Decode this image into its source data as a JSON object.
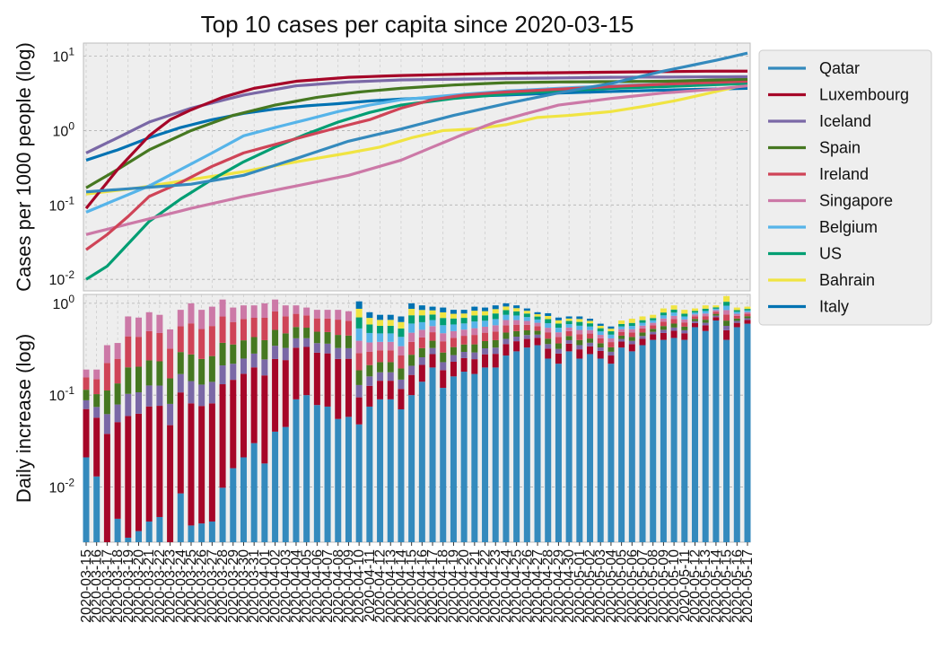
{
  "chart_data": [
    {
      "type": "line",
      "title": "Top 10 cases per capita since 2020-03-15",
      "ylabel": "Cases per 1000 people (log)",
      "yscale": "log",
      "ylim": [
        0.007,
        15
      ],
      "yticks": [
        0.01,
        0.1,
        1,
        10
      ],
      "ytick_labels": [
        {
          "base": "10",
          "exp": "-2"
        },
        {
          "base": "10",
          "exp": "-1"
        },
        {
          "base": "10",
          "exp": "0"
        },
        {
          "base": "10",
          "exp": "1"
        }
      ],
      "grid": true,
      "legend_position": "right",
      "dates": [
        "2020-03-15",
        "2020-03-16",
        "2020-03-17",
        "2020-03-18",
        "2020-03-19",
        "2020-03-20",
        "2020-03-21",
        "2020-03-22",
        "2020-03-23",
        "2020-03-24",
        "2020-03-25",
        "2020-03-26",
        "2020-03-27",
        "2020-03-28",
        "2020-03-29",
        "2020-03-30",
        "2020-03-31",
        "2020-04-01",
        "2020-04-02",
        "2020-04-03",
        "2020-04-04",
        "2020-04-05",
        "2020-04-06",
        "2020-04-07",
        "2020-04-08",
        "2020-04-09",
        "2020-04-10",
        "2020-04-11",
        "2020-04-12",
        "2020-04-13",
        "2020-04-14",
        "2020-04-15",
        "2020-04-16",
        "2020-04-17",
        "2020-04-18",
        "2020-04-19",
        "2020-04-20",
        "2020-04-21",
        "2020-04-22",
        "2020-04-23",
        "2020-04-24",
        "2020-04-25",
        "2020-04-26",
        "2020-04-27",
        "2020-04-28",
        "2020-04-29",
        "2020-04-30",
        "2020-05-01",
        "2020-05-02",
        "2020-05-03",
        "2020-05-04",
        "2020-05-05",
        "2020-05-06",
        "2020-05-07",
        "2020-05-08",
        "2020-05-09",
        "2020-05-10",
        "2020-05-11",
        "2020-05-12",
        "2020-05-13",
        "2020-05-14",
        "2020-05-15",
        "2020-05-16",
        "2020-05-17"
      ],
      "series": [
        {
          "name": "Qatar",
          "color": "#348abd",
          "key": [
            [
              0,
              0.15
            ],
            [
              10,
              0.19
            ],
            [
              15,
              0.25
            ],
            [
              20,
              0.42
            ],
            [
              25,
              0.72
            ],
            [
              30,
              1.05
            ],
            [
              35,
              1.6
            ],
            [
              40,
              2.3
            ],
            [
              45,
              3.2
            ],
            [
              50,
              4.3
            ],
            [
              55,
              6.3
            ],
            [
              60,
              8.8
            ],
            [
              63,
              11
            ]
          ]
        },
        {
          "name": "Luxembourg",
          "color": "#a60628",
          "key": [
            [
              0,
              0.09
            ],
            [
              3,
              0.3
            ],
            [
              6,
              0.85
            ],
            [
              8,
              1.4
            ],
            [
              10,
              1.9
            ],
            [
              13,
              2.8
            ],
            [
              16,
              3.7
            ],
            [
              20,
              4.6
            ],
            [
              25,
              5.2
            ],
            [
              30,
              5.5
            ],
            [
              35,
              5.7
            ],
            [
              40,
              5.9
            ],
            [
              45,
              6.0
            ],
            [
              50,
              6.1
            ],
            [
              55,
              6.2
            ],
            [
              60,
              6.3
            ],
            [
              63,
              6.3
            ]
          ]
        },
        {
          "name": "Iceland",
          "color": "#7a68a6",
          "key": [
            [
              0,
              0.5
            ],
            [
              3,
              0.8
            ],
            [
              6,
              1.3
            ],
            [
              10,
              2.0
            ],
            [
              15,
              3.0
            ],
            [
              20,
              4.0
            ],
            [
              25,
              4.5
            ],
            [
              30,
              4.8
            ],
            [
              40,
              5.0
            ],
            [
              50,
              5.2
            ],
            [
              63,
              5.3
            ]
          ]
        },
        {
          "name": "Spain",
          "color": "#467821",
          "key": [
            [
              0,
              0.17
            ],
            [
              3,
              0.3
            ],
            [
              6,
              0.55
            ],
            [
              10,
              1.0
            ],
            [
              14,
              1.6
            ],
            [
              18,
              2.2
            ],
            [
              22,
              2.8
            ],
            [
              26,
              3.3
            ],
            [
              30,
              3.7
            ],
            [
              35,
              4.1
            ],
            [
              40,
              4.4
            ],
            [
              45,
              4.5
            ],
            [
              55,
              4.6
            ],
            [
              63,
              4.9
            ]
          ]
        },
        {
          "name": "Ireland",
          "color": "#cf4457",
          "key": [
            [
              0,
              0.025
            ],
            [
              2,
              0.04
            ],
            [
              4,
              0.07
            ],
            [
              6,
              0.13
            ],
            [
              9,
              0.2
            ],
            [
              12,
              0.33
            ],
            [
              15,
              0.5
            ],
            [
              18,
              0.65
            ],
            [
              21,
              0.85
            ],
            [
              24,
              1.1
            ],
            [
              27,
              1.4
            ],
            [
              30,
              2.0
            ],
            [
              33,
              2.6
            ],
            [
              36,
              3.0
            ],
            [
              40,
              3.3
            ],
            [
              45,
              3.6
            ],
            [
              50,
              3.9
            ],
            [
              55,
              4.2
            ],
            [
              63,
              4.6
            ]
          ]
        },
        {
          "name": "Singapore",
          "color": "#cc79a7",
          "key": [
            [
              0,
              0.04
            ],
            [
              5,
              0.06
            ],
            [
              10,
              0.09
            ],
            [
              15,
              0.13
            ],
            [
              20,
              0.18
            ],
            [
              25,
              0.25
            ],
            [
              30,
              0.4
            ],
            [
              33,
              0.6
            ],
            [
              36,
              0.9
            ],
            [
              39,
              1.3
            ],
            [
              42,
              1.7
            ],
            [
              45,
              2.2
            ],
            [
              50,
              2.7
            ],
            [
              55,
              3.2
            ],
            [
              60,
              3.6
            ],
            [
              63,
              4.0
            ]
          ]
        },
        {
          "name": "Belgium",
          "color": "#56b4e9",
          "key": [
            [
              0,
              0.08
            ],
            [
              3,
              0.12
            ],
            [
              6,
              0.18
            ],
            [
              9,
              0.3
            ],
            [
              12,
              0.5
            ],
            [
              15,
              0.85
            ],
            [
              18,
              1.1
            ],
            [
              21,
              1.4
            ],
            [
              24,
              1.8
            ],
            [
              27,
              2.2
            ],
            [
              30,
              2.6
            ],
            [
              35,
              3.0
            ],
            [
              40,
              3.4
            ],
            [
              45,
              3.7
            ],
            [
              50,
              4.0
            ],
            [
              55,
              4.2
            ],
            [
              63,
              4.6
            ]
          ]
        },
        {
          "name": "US",
          "color": "#009e73",
          "key": [
            [
              0,
              0.01
            ],
            [
              2,
              0.015
            ],
            [
              4,
              0.03
            ],
            [
              6,
              0.06
            ],
            [
              9,
              0.12
            ],
            [
              12,
              0.22
            ],
            [
              15,
              0.38
            ],
            [
              18,
              0.6
            ],
            [
              21,
              0.9
            ],
            [
              24,
              1.3
            ],
            [
              27,
              1.75
            ],
            [
              30,
              2.2
            ],
            [
              35,
              2.7
            ],
            [
              40,
              3.1
            ],
            [
              45,
              3.4
            ],
            [
              50,
              3.7
            ],
            [
              55,
              3.9
            ],
            [
              63,
              4.3
            ]
          ]
        },
        {
          "name": "Bahrain",
          "color": "#f0e442",
          "key": [
            [
              0,
              0.14
            ],
            [
              5,
              0.17
            ],
            [
              10,
              0.22
            ],
            [
              15,
              0.28
            ],
            [
              20,
              0.38
            ],
            [
              25,
              0.5
            ],
            [
              28,
              0.6
            ],
            [
              31,
              0.8
            ],
            [
              34,
              1.0
            ],
            [
              37,
              1.05
            ],
            [
              40,
              1.2
            ],
            [
              43,
              1.5
            ],
            [
              46,
              1.6
            ],
            [
              50,
              1.8
            ],
            [
              53,
              2.1
            ],
            [
              56,
              2.5
            ],
            [
              59,
              3.1
            ],
            [
              63,
              4.2
            ]
          ]
        },
        {
          "name": "Italy",
          "color": "#0072b2",
          "key": [
            [
              0,
              0.4
            ],
            [
              3,
              0.55
            ],
            [
              6,
              0.8
            ],
            [
              9,
              1.1
            ],
            [
              12,
              1.4
            ],
            [
              15,
              1.7
            ],
            [
              18,
              1.95
            ],
            [
              21,
              2.15
            ],
            [
              24,
              2.3
            ],
            [
              27,
              2.5
            ],
            [
              30,
              2.65
            ],
            [
              35,
              2.85
            ],
            [
              40,
              3.0
            ],
            [
              45,
              3.2
            ],
            [
              50,
              3.35
            ],
            [
              55,
              3.5
            ],
            [
              63,
              3.7
            ]
          ]
        }
      ]
    },
    {
      "type": "bar",
      "stacked": true,
      "ylabel": "Daily increase (log)",
      "yscale": "log",
      "ylim": [
        0.0025,
        1.25
      ],
      "yticks": [
        0.01,
        0.1,
        1
      ],
      "ytick_labels": [
        {
          "base": "10",
          "exp": "-2"
        },
        {
          "base": "10",
          "exp": "-1"
        },
        {
          "base": "10",
          "exp": "0"
        }
      ],
      "grid": true,
      "stack_order": [
        "Qatar",
        "Luxembourg",
        "Iceland",
        "Spain",
        "Ireland",
        "Singapore",
        "Belgium",
        "US",
        "Bahrain",
        "Italy"
      ],
      "totals": [
        0.19,
        0.19,
        0.35,
        0.37,
        0.72,
        0.7,
        0.8,
        0.75,
        0.52,
        0.85,
        1.0,
        0.85,
        0.92,
        1.1,
        0.9,
        0.95,
        0.95,
        1.0,
        1.1,
        0.95,
        0.95,
        0.9,
        0.85,
        0.85,
        0.85,
        0.82,
        1.05,
        0.8,
        0.75,
        0.75,
        0.72,
        1.0,
        0.95,
        0.92,
        0.9,
        0.85,
        0.85,
        0.92,
        0.9,
        0.95,
        1.0,
        0.95,
        0.88,
        0.8,
        0.78,
        0.7,
        0.72,
        0.72,
        0.68,
        0.6,
        0.56,
        0.65,
        0.68,
        0.72,
        0.75,
        0.88,
        0.95,
        0.85,
        0.88,
        0.95,
        0.95,
        1.2,
        0.9,
        0.92
      ],
      "qatar_base": [
        0.021,
        0.013,
        0.0015,
        0.0045,
        0.0028,
        0.0033,
        0.0042,
        0.0047,
        0.0015,
        0.0085,
        0.0038,
        0.004,
        0.0042,
        0.0098,
        0.016,
        0.021,
        0.03,
        0.018,
        0.04,
        0.045,
        0.09,
        0.1,
        0.078,
        0.075,
        0.055,
        0.058,
        0.048,
        0.075,
        0.09,
        0.09,
        0.07,
        0.1,
        0.14,
        0.2,
        0.12,
        0.16,
        0.18,
        0.17,
        0.2,
        0.2,
        0.27,
        0.3,
        0.33,
        0.35,
        0.25,
        0.22,
        0.3,
        0.25,
        0.28,
        0.25,
        0.22,
        0.33,
        0.3,
        0.35,
        0.4,
        0.4,
        0.42,
        0.4,
        0.55,
        0.5,
        0.65,
        0.4,
        0.55,
        0.6
      ]
    }
  ]
}
